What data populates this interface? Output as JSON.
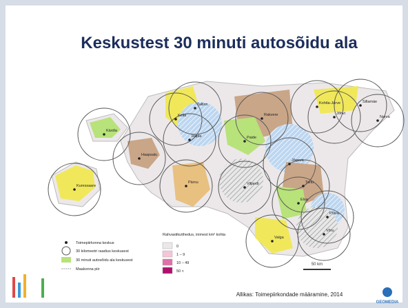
{
  "slide": {
    "title": "Keskustest 30 minuti autosõidu ala",
    "source": "Allikas: Toimepiirkondade määramine, 2014",
    "logo": "GEOMEDIA"
  },
  "map": {
    "towns": [
      "Tallinn",
      "Keila",
      "Rapla",
      "Haapsalu",
      "Kärdla",
      "Rakvere",
      "Kohtla-Järve",
      "Jõhvi",
      "Sillamäe",
      "Narva",
      "Paide",
      "Jõgeva",
      "Pärnu",
      "Viljandi",
      "Tartu",
      "Elva",
      "Põlva",
      "Võru",
      "Valga",
      "Kuressaare"
    ],
    "legend": [
      "Toimepiirkonna keskus",
      "30 kilomeetri raadius keskusest",
      "30 minuti autosõidu ala keskusest",
      "Maakonna piir"
    ],
    "density_title": "Rahvastikutihedus, inimest km² kohta",
    "density_classes": [
      "0",
      "1 – 9",
      "10 – 49",
      "50 <"
    ],
    "scale": "50 km"
  }
}
